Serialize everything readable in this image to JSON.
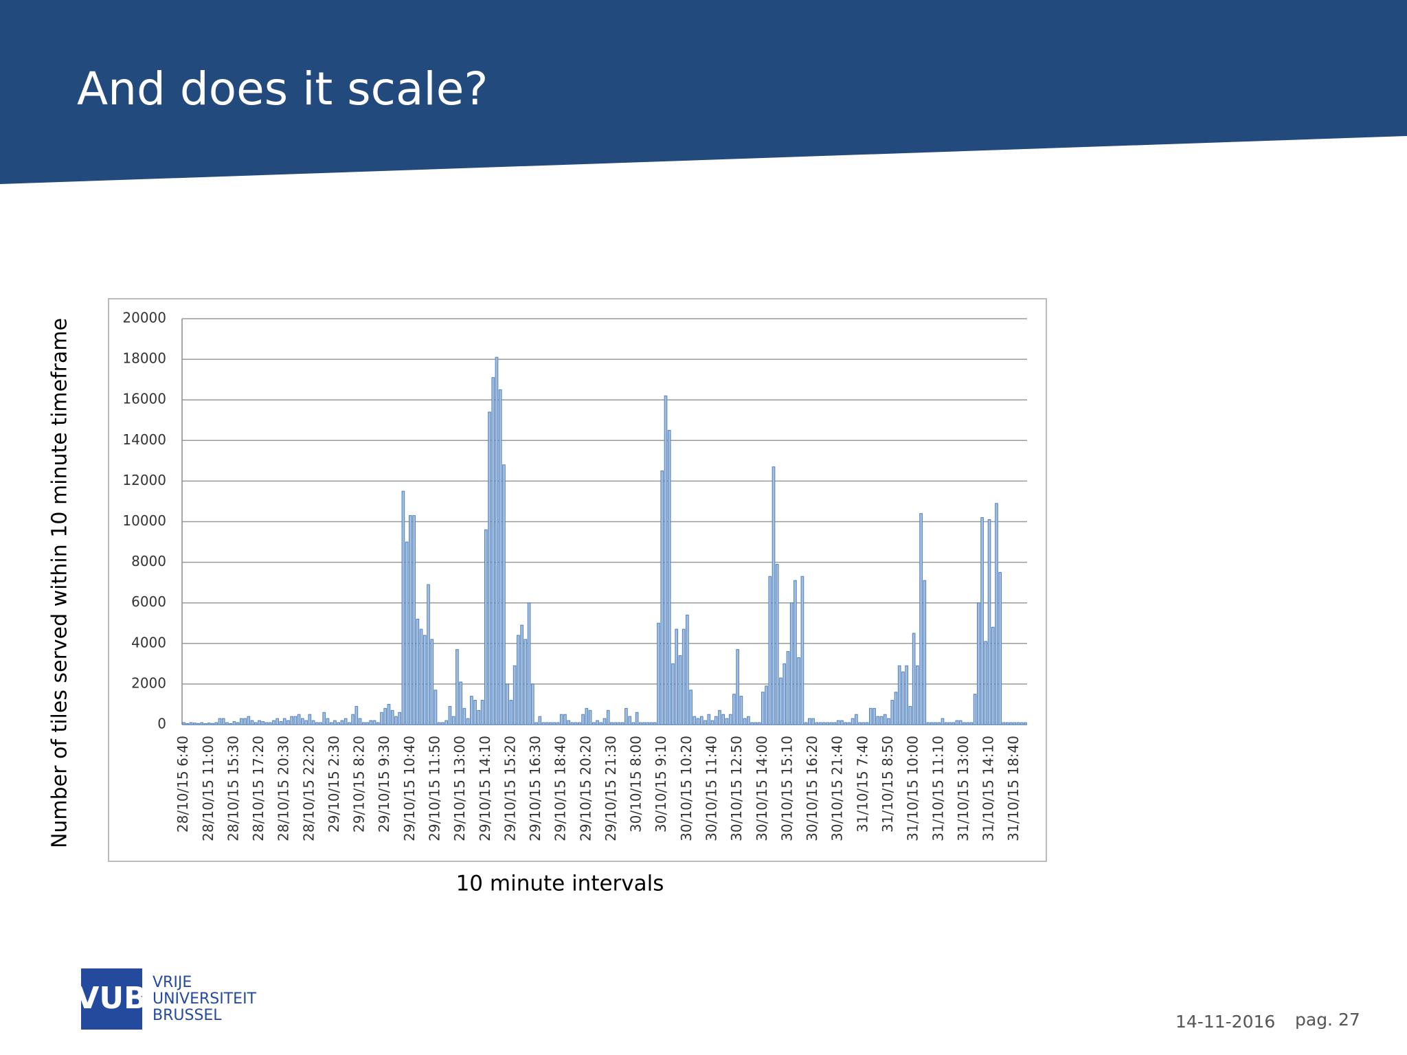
{
  "header": {
    "title": "And does it scale?"
  },
  "chart_data": {
    "type": "bar",
    "y_axis_label": "Number of tiles served within 10 minute timeframe",
    "x_axis_label": "10 minute intervals",
    "color": "#a7bfdf",
    "edge_color": "#4f81bd",
    "grid": true,
    "ylim": [
      0,
      20000
    ],
    "yticks": [
      0,
      2000,
      4000,
      6000,
      8000,
      10000,
      12000,
      14000,
      16000,
      18000,
      20000
    ],
    "categories": [
      "28/10/15 6:40",
      null,
      null,
      null,
      null,
      null,
      null,
      "28/10/15 11:00",
      null,
      null,
      null,
      null,
      null,
      null,
      "28/10/15 15:30",
      null,
      null,
      null,
      null,
      null,
      null,
      "28/10/15 17:20",
      null,
      null,
      null,
      null,
      null,
      null,
      "28/10/15 20:30",
      null,
      null,
      null,
      null,
      null,
      null,
      "28/10/15 22:20",
      null,
      null,
      null,
      null,
      null,
      null,
      "29/10/15 2:30",
      null,
      null,
      null,
      null,
      null,
      null,
      "29/10/15 8:20",
      null,
      null,
      null,
      null,
      null,
      null,
      "29/10/15 9:30",
      null,
      null,
      null,
      null,
      null,
      null,
      "29/10/15 10:40",
      null,
      null,
      null,
      null,
      null,
      null,
      "29/10/15 11:50",
      null,
      null,
      null,
      null,
      null,
      null,
      "29/10/15 13:00",
      null,
      null,
      null,
      null,
      null,
      null,
      "29/10/15 14:10",
      null,
      null,
      null,
      null,
      null,
      null,
      "29/10/15 15:20",
      null,
      null,
      null,
      null,
      null,
      null,
      "29/10/15 16:30",
      null,
      null,
      null,
      null,
      null,
      null,
      "29/10/15 18:40",
      null,
      null,
      null,
      null,
      null,
      null,
      "29/10/15 20:20",
      null,
      null,
      null,
      null,
      null,
      null,
      "29/10/15 21:30",
      null,
      null,
      null,
      null,
      null,
      null,
      "30/10/15 8:00",
      null,
      null,
      null,
      null,
      null,
      null,
      "30/10/15 9:10",
      null,
      null,
      null,
      null,
      null,
      null,
      "30/10/15 10:20",
      null,
      null,
      null,
      null,
      null,
      null,
      "30/10/15 11:40",
      null,
      null,
      null,
      null,
      null,
      null,
      "30/10/15 12:50",
      null,
      null,
      null,
      null,
      null,
      null,
      "30/10/15 14:00",
      null,
      null,
      null,
      null,
      null,
      null,
      "30/10/15 15:10",
      null,
      null,
      null,
      null,
      null,
      null,
      "30/10/15 16:20",
      null,
      null,
      null,
      null,
      null,
      null,
      "30/10/15 21:40",
      null,
      null,
      null,
      null,
      null,
      null,
      "31/10/15 7:40",
      null,
      null,
      null,
      null,
      null,
      null,
      "31/10/15 8:50",
      null,
      null,
      null,
      null,
      null,
      null,
      "31/10/15 10:00",
      null,
      null,
      null,
      null,
      null,
      null,
      "31/10/15 11:10",
      null,
      null,
      null,
      null,
      null,
      null,
      "31/10/15 13:00",
      null,
      null,
      null,
      null,
      null,
      null,
      "31/10/15 14:10",
      null,
      null,
      null,
      null,
      null,
      null,
      "31/10/15 18:40",
      null,
      null,
      null
    ],
    "values": [
      100,
      50,
      100,
      80,
      60,
      100,
      50,
      80,
      60,
      100,
      300,
      300,
      100,
      50,
      150,
      100,
      300,
      300,
      400,
      200,
      100,
      200,
      150,
      100,
      100,
      200,
      300,
      150,
      300,
      200,
      400,
      400,
      500,
      300,
      200,
      500,
      200,
      100,
      100,
      600,
      300,
      100,
      200,
      100,
      200,
      300,
      100,
      500,
      900,
      300,
      100,
      100,
      200,
      200,
      100,
      600,
      800,
      1000,
      700,
      400,
      600,
      11500,
      9000,
      10300,
      10300,
      5200,
      4700,
      4400,
      6900,
      4200,
      1700,
      100,
      100,
      200,
      900,
      400,
      3700,
      2100,
      800,
      300,
      1400,
      1200,
      700,
      1200,
      9600,
      15400,
      17100,
      18100,
      16500,
      12800,
      2000,
      1200,
      2900,
      4400,
      4900,
      4200,
      6000,
      2000,
      100,
      400,
      100,
      100,
      100,
      100,
      100,
      500,
      500,
      200,
      100,
      100,
      100,
      500,
      800,
      700,
      100,
      200,
      100,
      300,
      700,
      100,
      100,
      100,
      100,
      800,
      400,
      100,
      600,
      100,
      100,
      100,
      100,
      100,
      5000,
      12500,
      16200,
      14500,
      3000,
      4700,
      3400,
      4700,
      5400,
      1700,
      400,
      300,
      400,
      200,
      500,
      200,
      400,
      700,
      500,
      300,
      500,
      1500,
      3700,
      1400,
      300,
      400,
      100,
      100,
      100,
      1600,
      1900,
      7300,
      12700,
      7900,
      2300,
      3000,
      3600,
      6000,
      7100,
      3300,
      7300,
      100,
      300,
      300,
      100,
      100,
      100,
      100,
      100,
      100,
      200,
      200,
      100,
      100,
      300,
      500,
      100,
      100,
      100,
      800,
      800,
      400,
      400,
      500,
      300,
      1200,
      1600,
      2900,
      2600,
      2900,
      900,
      4500,
      2900,
      10400,
      7100,
      100,
      100,
      100,
      100,
      300,
      100,
      100,
      100,
      200,
      200,
      100,
      100,
      100,
      1500,
      6000,
      10200,
      4100,
      10100,
      4800,
      10900,
      7500,
      100,
      100,
      100,
      100,
      100,
      100,
      100
    ]
  },
  "footer": {
    "logo_mark": "VUB",
    "logo_lines": [
      "VRIJE",
      "UNIVERSITEIT",
      "BRUSSEL"
    ],
    "date": "14-11-2016",
    "page": "pag. 27"
  }
}
